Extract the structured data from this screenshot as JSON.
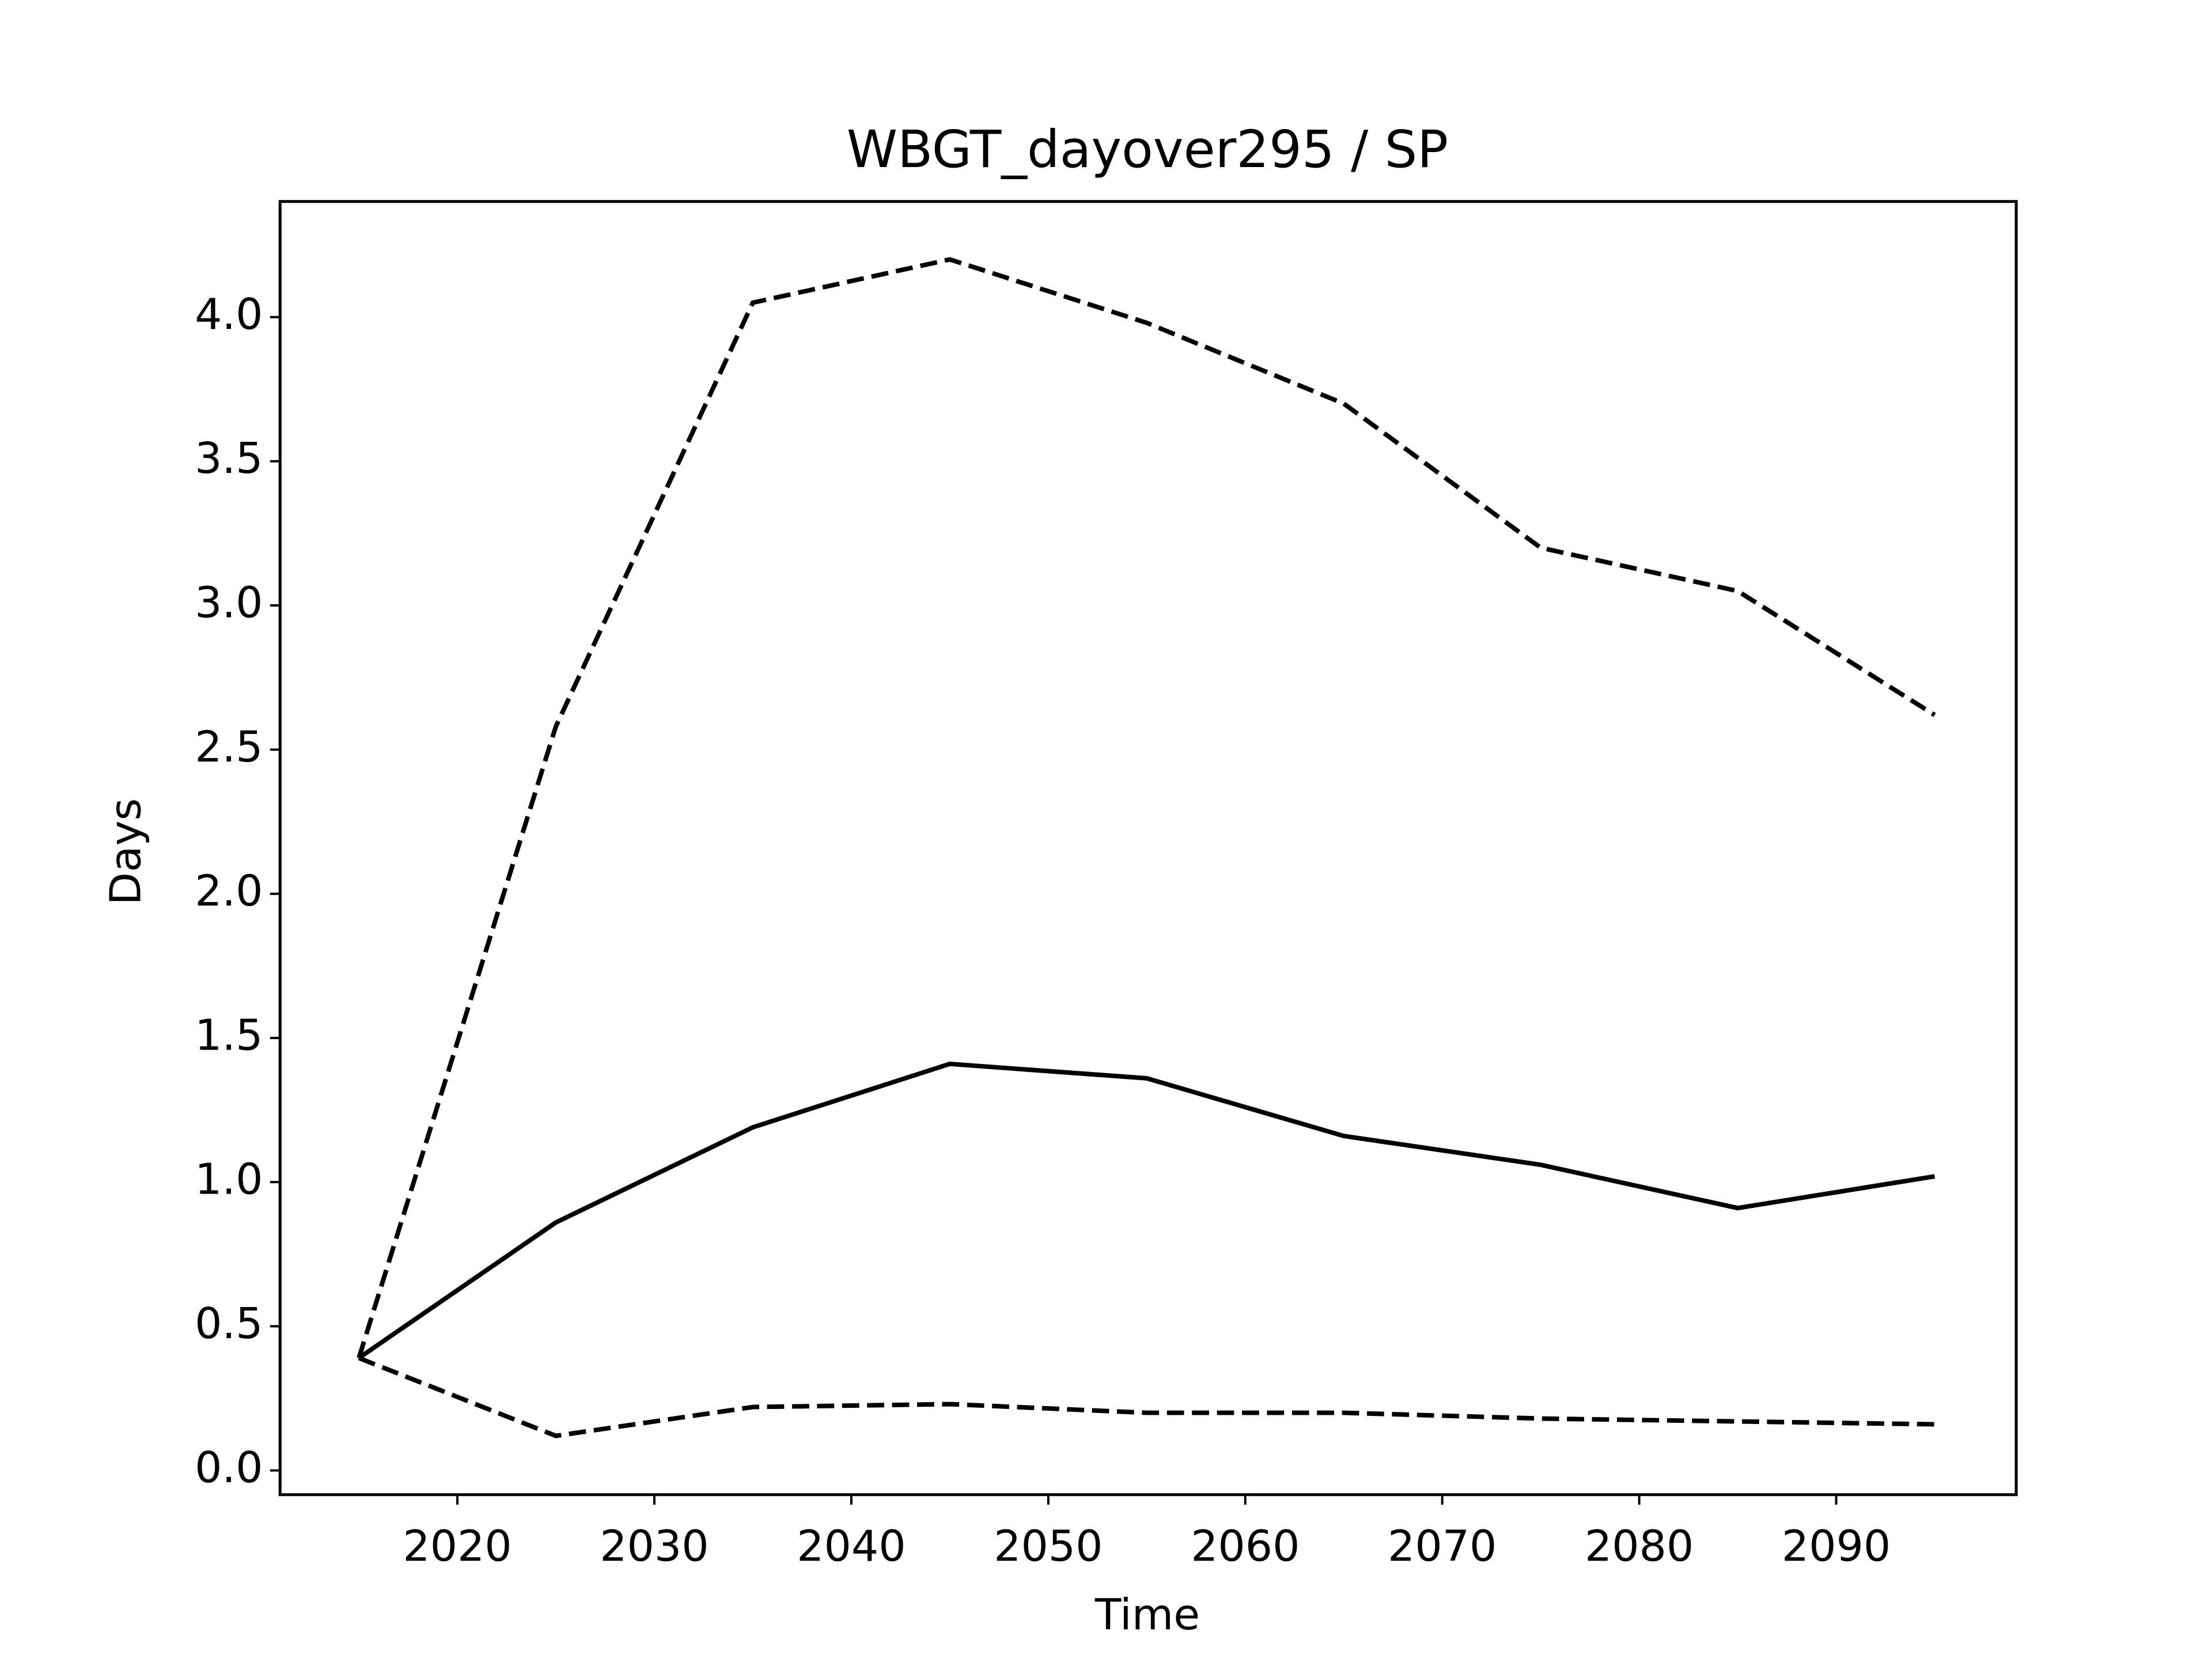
{
  "chart_data": {
    "type": "line",
    "title": "WBGT_dayover295 / SP",
    "xlabel": "Time",
    "ylabel": "Days",
    "x": [
      2015,
      2025,
      2035,
      2045,
      2055,
      2065,
      2075,
      2085,
      2095
    ],
    "series": [
      {
        "color": "#000000",
        "dashed": false,
        "values": [
          0.39,
          0.86,
          1.19,
          1.41,
          1.36,
          1.16,
          1.06,
          0.91,
          1.02
        ]
      },
      {
        "color": "#000000",
        "dashed": true,
        "values": [
          0.39,
          2.58,
          4.05,
          4.2,
          3.98,
          3.7,
          3.2,
          3.05,
          2.62
        ]
      },
      {
        "color": "#000000",
        "dashed": true,
        "values": [
          0.39,
          0.12,
          0.22,
          0.23,
          0.2,
          0.2,
          0.18,
          0.17,
          0.16
        ]
      }
    ],
    "xlim": [
      2011,
      2099.14
    ],
    "xticks": [
      2020,
      2030,
      2040,
      2050,
      2060,
      2070,
      2080,
      2090
    ],
    "ylim": [
      -0.084,
      4.401
    ],
    "yticks": [
      {
        "value": 0,
        "label": "0.0"
      },
      {
        "value": 0.5,
        "label": "0.5"
      },
      {
        "value": 1,
        "label": "1.0"
      },
      {
        "value": 1.5,
        "label": "1.5"
      },
      {
        "value": 2,
        "label": "2.0"
      },
      {
        "value": 2.5,
        "label": "2.5"
      },
      {
        "value": 3,
        "label": "3.0"
      },
      {
        "value": 3.5,
        "label": "3.5"
      },
      {
        "value": 4,
        "label": "4.0"
      }
    ],
    "grid": false
  }
}
